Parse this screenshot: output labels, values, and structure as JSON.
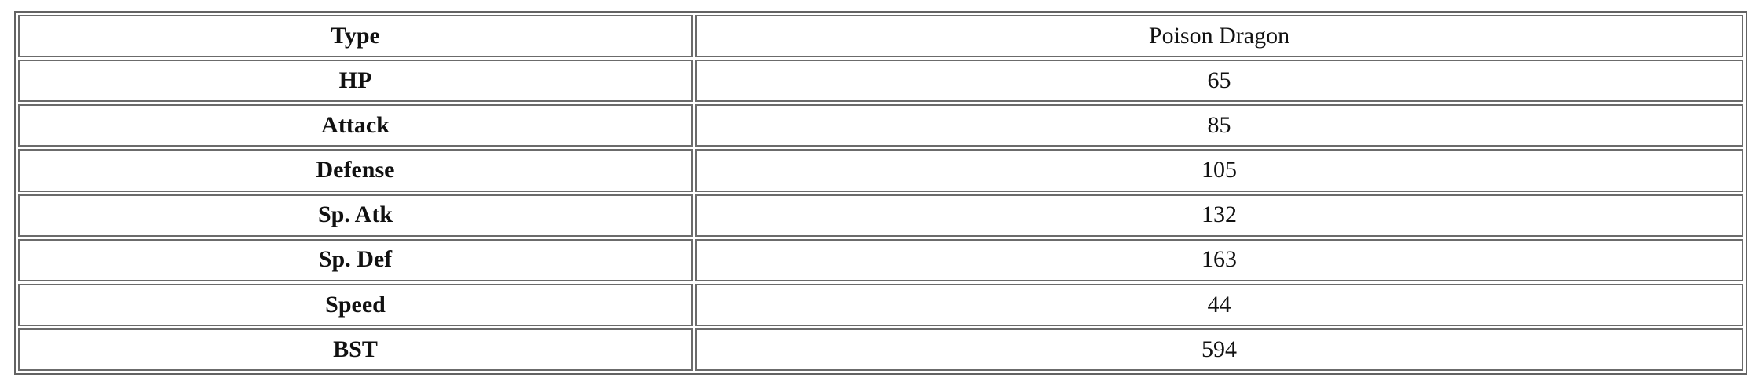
{
  "table": {
    "rows": [
      {
        "label": "Type",
        "value": "Poison Dragon"
      },
      {
        "label": "HP",
        "value": "65"
      },
      {
        "label": "Attack",
        "value": "85"
      },
      {
        "label": "Defense",
        "value": "105"
      },
      {
        "label": "Sp. Atk",
        "value": "132"
      },
      {
        "label": "Sp. Def",
        "value": "163"
      },
      {
        "label": "Speed",
        "value": "44"
      },
      {
        "label": "BST",
        "value": "594"
      }
    ]
  },
  "colors": {
    "table_border": "#636363",
    "cell_border": "#6b6b6b",
    "text": "#111111",
    "background": "#ffffff"
  }
}
